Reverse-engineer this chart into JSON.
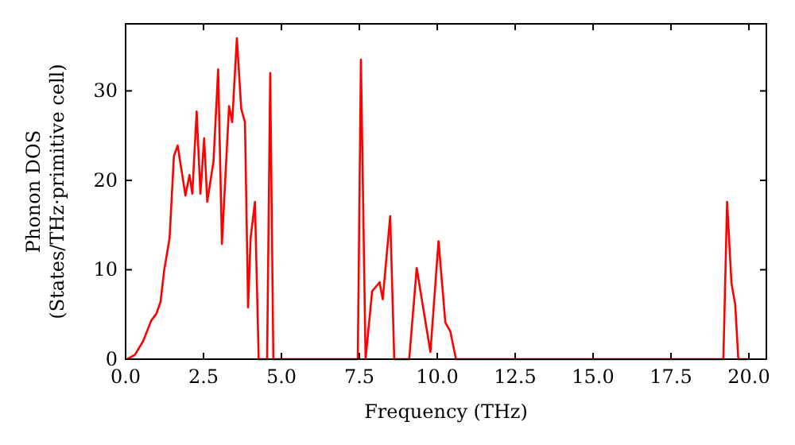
{
  "chart_data": {
    "type": "line",
    "xlabel": "Frequency (THz)",
    "ylabel": "Phonon DOS\n(States/THz·primitive cell)",
    "xlim": [
      0,
      20.56
    ],
    "ylim": [
      0,
      37.5
    ],
    "xticks": [
      {
        "value": 0,
        "label": "0.0"
      },
      {
        "value": 2.5,
        "label": "2.5"
      },
      {
        "value": 5,
        "label": "5.0"
      },
      {
        "value": 7.5,
        "label": "7.5"
      },
      {
        "value": 10,
        "label": "10.0"
      },
      {
        "value": 12.5,
        "label": "12.5"
      },
      {
        "value": 15,
        "label": "15.0"
      },
      {
        "value": 17.5,
        "label": "17.5"
      },
      {
        "value": 20,
        "label": "20.0"
      }
    ],
    "yticks": [
      0,
      10,
      20,
      30
    ],
    "grid": false,
    "series": [
      {
        "color": "#ff0000",
        "x": [
          0.05,
          0.3,
          0.56,
          0.82,
          0.99,
          1.12,
          1.24,
          1.41,
          1.55,
          1.67,
          1.92,
          2.05,
          2.14,
          2.28,
          2.4,
          2.52,
          2.62,
          2.82,
          2.97,
          3.09,
          3.32,
          3.42,
          3.57,
          3.71,
          3.83,
          3.93,
          4.01,
          4.15,
          4.27,
          4.54,
          4.64,
          4.74,
          7.45,
          7.55,
          7.7,
          7.91,
          8.15,
          8.25,
          8.49,
          8.62,
          9.1,
          9.34,
          9.78,
          10.04,
          10.26,
          10.42,
          10.6,
          19.18,
          19.3,
          19.44,
          19.56,
          19.66,
          19.95
        ],
        "values": [
          0,
          0.5,
          2,
          4.3,
          5.1,
          6.4,
          10,
          13.5,
          22.7,
          23.9,
          18.3,
          20.6,
          18.5,
          27.7,
          18.5,
          24.7,
          17.6,
          22.1,
          32.4,
          12.9,
          28.3,
          26.5,
          35.9,
          28,
          26.5,
          5.8,
          13.5,
          17.6,
          0,
          0,
          32,
          0,
          0,
          33.5,
          0,
          7.6,
          8.6,
          6.7,
          16,
          0,
          0,
          10.2,
          0.8,
          13.2,
          4.1,
          3.1,
          0,
          0,
          17.6,
          8.5,
          6.1,
          0,
          0
        ]
      }
    ]
  }
}
